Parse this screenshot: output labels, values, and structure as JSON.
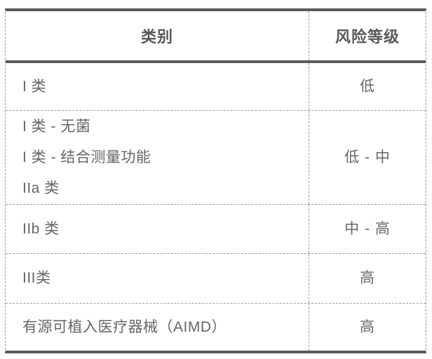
{
  "table": {
    "title_semantic": "medical-device-classification-risk-table",
    "columns": [
      {
        "label": "类别"
      },
      {
        "label": "风险等级"
      }
    ],
    "rows": [
      {
        "category_lines": [
          "I 类"
        ],
        "risk": "低"
      },
      {
        "category_lines": [
          "I 类 - 无菌",
          "I 类 - 结合测量功能",
          "IIa 类"
        ],
        "risk": "低 - 中"
      },
      {
        "category_lines": [
          "IIb 类"
        ],
        "risk": "中 - 高"
      },
      {
        "category_lines": [
          "III类"
        ],
        "risk": "高"
      },
      {
        "category_lines": [
          "有源可植入医疗器械（AIMD）"
        ],
        "risk": "高"
      }
    ],
    "colors": {
      "solid_rule": "#5a5a5a",
      "dashed_border": "#9a9a9a",
      "header_text": "#595959",
      "body_text": "#666666",
      "background": "#ffffff"
    }
  }
}
